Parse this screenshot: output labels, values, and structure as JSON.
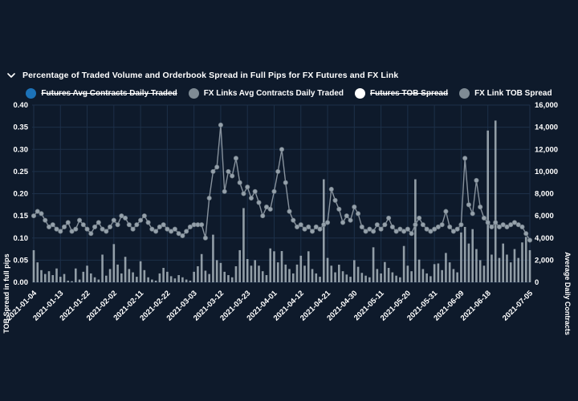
{
  "header": {
    "title": "Percentage of Traded Volume and Orderbook Spread in Full Pips for FX Futures and FX Link"
  },
  "legend": [
    {
      "label": "Futures Avg Contracts Daily Traded",
      "color": "#1c72b8",
      "disabled": true
    },
    {
      "label": "FX Links Avg Contracts Daily Traded",
      "color": "#7f8b94",
      "disabled": false
    },
    {
      "label": "Futures TOB Spread",
      "color": "#ffffff",
      "disabled": true
    },
    {
      "label": "FX Link TOB Spread",
      "color": "#7f8b94",
      "disabled": false
    }
  ],
  "colors": {
    "background": "#0e1a2b",
    "gridline": "#1d3049",
    "bar": "#b3bec6",
    "line": "#8e99a3",
    "marker_fill": "#95a1ab",
    "marker_stroke": "#6e7a84",
    "text": "#ffffff"
  },
  "chart_data": {
    "type": "combo",
    "left_axis": {
      "title": "TOB Spread in full pips",
      "min": 0,
      "max": 0.4,
      "ticks": [
        "0.00",
        "0.05",
        "0.10",
        "0.15",
        "0.20",
        "0.25",
        "0.30",
        "0.35",
        "0.40"
      ]
    },
    "right_axis": {
      "title": "Average Daily Contracts",
      "min": 0,
      "max": 16000,
      "ticks": [
        "0",
        "2,000",
        "4,000",
        "6,000",
        "8,000",
        "10,000",
        "12,000",
        "14,000",
        "16,000"
      ]
    },
    "x_ticks": [
      {
        "i": 0,
        "label": "2021-01-04"
      },
      {
        "i": 7,
        "label": "2021-01-13"
      },
      {
        "i": 14,
        "label": "2021-01-22"
      },
      {
        "i": 21,
        "label": "2021-02-02"
      },
      {
        "i": 28,
        "label": "2021-02-11"
      },
      {
        "i": 35,
        "label": "2021-02-22"
      },
      {
        "i": 42,
        "label": "2021-03-03"
      },
      {
        "i": 49,
        "label": "2021-03-12"
      },
      {
        "i": 56,
        "label": "2021-03-23"
      },
      {
        "i": 63,
        "label": "2021-04-01"
      },
      {
        "i": 70,
        "label": "2021-04-12"
      },
      {
        "i": 77,
        "label": "2021-04-21"
      },
      {
        "i": 84,
        "label": "2021-04-30"
      },
      {
        "i": 91,
        "label": "2021-05-11"
      },
      {
        "i": 98,
        "label": "2021-05-20"
      },
      {
        "i": 105,
        "label": "2021-05-31"
      },
      {
        "i": 112,
        "label": "2021-06-09"
      },
      {
        "i": 119,
        "label": "2021-06-18"
      },
      {
        "i": 130,
        "label": "2021-07-05"
      }
    ],
    "n_points": 131,
    "series": [
      {
        "name": "FX Links Avg Contracts Daily Traded",
        "type": "bar",
        "axis": "right",
        "values": [
          2900,
          1800,
          1100,
          750,
          1000,
          650,
          1250,
          500,
          750,
          150,
          100,
          1250,
          250,
          950,
          1500,
          800,
          450,
          250,
          2500,
          600,
          1200,
          3450,
          1600,
          800,
          2300,
          1200,
          900,
          500,
          1900,
          1100,
          450,
          250,
          150,
          800,
          1300,
          950,
          550,
          350,
          650,
          450,
          250,
          150,
          950,
          1450,
          2550,
          1050,
          750,
          4300,
          2000,
          1750,
          950,
          650,
          450,
          1450,
          2900,
          6700,
          2100,
          1500,
          2000,
          1500,
          1000,
          650,
          3060,
          2800,
          1800,
          2820,
          1600,
          1200,
          800,
          1600,
          2400,
          1500,
          2800,
          1200,
          800,
          500,
          9300,
          2200,
          1500,
          900,
          1590,
          1000,
          700,
          500,
          2000,
          1400,
          850,
          600,
          450,
          3160,
          1200,
          800,
          1830,
          1300,
          900,
          600,
          450,
          3280,
          1500,
          1000,
          9300,
          2050,
          1200,
          800,
          550,
          1640,
          1700,
          1100,
          2650,
          1800,
          1200,
          900,
          4500,
          5000,
          3500,
          4800,
          3000,
          2000,
          1500,
          13700,
          2500,
          14600,
          2200,
          3500,
          2500,
          1800,
          3000,
          2200,
          3600,
          4100,
          2900
        ]
      },
      {
        "name": "FX Link TOB Spread",
        "type": "line",
        "axis": "left",
        "values": [
          0.15,
          0.16,
          0.155,
          0.14,
          0.125,
          0.13,
          0.12,
          0.115,
          0.125,
          0.135,
          0.115,
          0.12,
          0.14,
          0.13,
          0.12,
          0.11,
          0.125,
          0.135,
          0.12,
          0.115,
          0.125,
          0.14,
          0.13,
          0.15,
          0.145,
          0.13,
          0.12,
          0.13,
          0.14,
          0.15,
          0.135,
          0.12,
          0.115,
          0.125,
          0.13,
          0.12,
          0.115,
          0.12,
          0.11,
          0.105,
          0.115,
          0.125,
          0.13,
          0.13,
          0.13,
          0.1,
          0.19,
          0.25,
          0.26,
          0.355,
          0.205,
          0.25,
          0.24,
          0.28,
          0.225,
          0.2,
          0.215,
          0.19,
          0.205,
          0.18,
          0.15,
          0.17,
          0.165,
          0.205,
          0.25,
          0.3,
          0.225,
          0.16,
          0.14,
          0.125,
          0.13,
          0.12,
          0.125,
          0.115,
          0.125,
          0.12,
          0.13,
          0.135,
          0.21,
          0.185,
          0.165,
          0.135,
          0.15,
          0.14,
          0.17,
          0.155,
          0.125,
          0.115,
          0.12,
          0.115,
          0.13,
          0.12,
          0.13,
          0.145,
          0.125,
          0.115,
          0.12,
          0.115,
          0.12,
          0.11,
          0.13,
          0.145,
          0.13,
          0.12,
          0.115,
          0.12,
          0.125,
          0.13,
          0.16,
          0.125,
          0.115,
          0.12,
          0.13,
          0.28,
          0.175,
          0.155,
          0.23,
          0.17,
          0.145,
          0.135,
          0.125,
          0.135,
          0.125,
          0.13,
          0.125,
          0.13,
          0.135,
          0.13,
          0.125,
          0.11,
          0.095
        ]
      }
    ],
    "hidden_series": [
      "Futures Avg Contracts Daily Traded",
      "Futures TOB Spread"
    ]
  }
}
